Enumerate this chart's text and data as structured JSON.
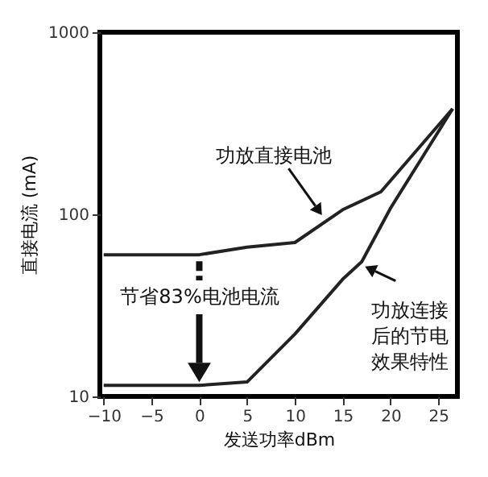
{
  "chart_data": {
    "type": "line",
    "xlabel": "发送功率dBm",
    "ylabel": "直接电流 (mA)",
    "x": [
      -10,
      -5,
      0,
      5,
      10,
      15,
      19,
      26.5
    ],
    "series": [
      {
        "color": "#222222",
        "values": [
          60,
          60,
          60,
          66,
          70,
          106,
          133,
          380
        ]
      },
      {
        "color": "#222222",
        "x": [
          -10,
          -5,
          0,
          5,
          10,
          15,
          17,
          20,
          26.5
        ],
        "values": [
          11.5,
          11.5,
          11.5,
          12,
          22,
          44,
          55,
          108,
          380
        ]
      }
    ],
    "xlim": [
      -10.4,
      27
    ],
    "xticks": [
      -10,
      -5,
      0,
      5,
      10,
      15,
      20,
      25
    ],
    "ylim": [
      10,
      1000
    ],
    "yticks": [
      10,
      100,
      1000
    ],
    "log": true,
    "grid": false,
    "marker": "none",
    "line_style": "solid",
    "annotations": [
      {
        "text": "功放直接电池",
        "x": 13,
        "y": 93
      },
      "节省83%电池电流",
      {
        "text": "功放连接后的节电效果特性",
        "x": 17,
        "y": 55
      }
    ]
  }
}
